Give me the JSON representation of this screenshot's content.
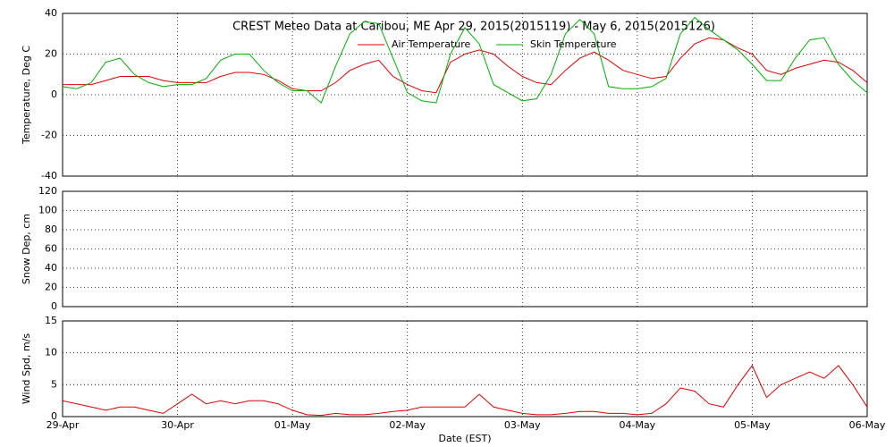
{
  "chart_data": [
    {
      "type": "line",
      "title": "CREST Meteo Data at Caribou, ME   Apr 29, 2015(2015119) - May  6, 2015(2015126)",
      "ylabel": "Temperature, Deg C",
      "ylim": [
        -40,
        40
      ],
      "yticks": [
        -40,
        -20,
        0,
        20,
        40
      ],
      "xlim": [
        0,
        7
      ],
      "xticks": [
        0,
        1,
        2,
        3,
        4,
        5,
        6,
        7
      ],
      "grid": true,
      "x": [
        0,
        0.125,
        0.25,
        0.375,
        0.5,
        0.625,
        0.75,
        0.875,
        1,
        1.125,
        1.25,
        1.375,
        1.5,
        1.625,
        1.75,
        1.875,
        2,
        2.125,
        2.25,
        2.375,
        2.5,
        2.625,
        2.75,
        2.875,
        3,
        3.125,
        3.25,
        3.375,
        3.5,
        3.625,
        3.75,
        3.875,
        4,
        4.125,
        4.25,
        4.375,
        4.5,
        4.625,
        4.75,
        4.875,
        5,
        5.125,
        5.25,
        5.375,
        5.5,
        5.625,
        5.75,
        5.875,
        6,
        6.125,
        6.25,
        6.375,
        6.5,
        6.625,
        6.75,
        6.875,
        7
      ],
      "series": [
        {
          "name": "Air Temperature",
          "color": "#e00000",
          "values": [
            5,
            5,
            5,
            7,
            9,
            9,
            9,
            7,
            6,
            6,
            6,
            9,
            11,
            11,
            10,
            7,
            3,
            2,
            2,
            6,
            12,
            15,
            17,
            9,
            5,
            2,
            1,
            16,
            20,
            22,
            20,
            14,
            9,
            6,
            5,
            12,
            18,
            21,
            17,
            12,
            10,
            8,
            9,
            18,
            25,
            28,
            27,
            23,
            20,
            12,
            10,
            13,
            15,
            17,
            16,
            12,
            6
          ]
        },
        {
          "name": "Skin Temperature",
          "color": "#00b000",
          "values": [
            4,
            3,
            6,
            16,
            18,
            10,
            6,
            4,
            5,
            5,
            8,
            17,
            20,
            20,
            12,
            6,
            2,
            2,
            -4,
            14,
            30,
            36,
            35,
            18,
            1,
            -3,
            -4,
            20,
            33,
            25,
            5,
            1,
            -3,
            -2,
            10,
            30,
            37,
            30,
            4,
            3,
            3,
            4,
            8,
            30,
            38,
            32,
            27,
            22,
            15,
            7,
            7,
            18,
            27,
            28,
            15,
            7,
            1
          ]
        }
      ]
    },
    {
      "type": "line",
      "ylabel": "Snow Dep, cm",
      "ylim": [
        0,
        120
      ],
      "yticks": [
        0,
        20,
        40,
        60,
        80,
        100,
        120
      ],
      "xlim": [
        0,
        7
      ],
      "xticks": [
        0,
        1,
        2,
        3,
        4,
        5,
        6,
        7
      ],
      "grid": true,
      "series": []
    },
    {
      "type": "line",
      "ylabel": "Wind Spd, m/s",
      "xlabel": "Date (EST)",
      "ylim": [
        0,
        15
      ],
      "yticks": [
        0,
        5,
        10,
        15
      ],
      "xlim": [
        0,
        7
      ],
      "xticks": [
        {
          "value": 0,
          "label": "29-Apr"
        },
        {
          "value": 1,
          "label": "30-Apr"
        },
        {
          "value": 2,
          "label": "01-May"
        },
        {
          "value": 3,
          "label": "02-May"
        },
        {
          "value": 4,
          "label": "03-May"
        },
        {
          "value": 5,
          "label": "04-May"
        },
        {
          "value": 6,
          "label": "05-May"
        },
        {
          "value": 7,
          "label": "06-May"
        }
      ],
      "grid": true,
      "x": [
        0,
        0.125,
        0.25,
        0.375,
        0.5,
        0.625,
        0.75,
        0.875,
        1,
        1.125,
        1.25,
        1.375,
        1.5,
        1.625,
        1.75,
        1.875,
        2,
        2.125,
        2.25,
        2.375,
        2.5,
        2.625,
        2.75,
        2.875,
        3,
        3.125,
        3.25,
        3.375,
        3.5,
        3.625,
        3.75,
        3.875,
        4,
        4.125,
        4.25,
        4.375,
        4.5,
        4.625,
        4.75,
        4.875,
        5,
        5.125,
        5.25,
        5.375,
        5.5,
        5.625,
        5.75,
        5.875,
        6,
        6.125,
        6.25,
        6.375,
        6.5,
        6.625,
        6.75,
        6.875,
        7
      ],
      "series": [
        {
          "name": "Wind Speed",
          "color": "#e00000",
          "show_legend": false,
          "values": [
            2.5,
            2,
            1.5,
            1,
            1.5,
            1.5,
            1,
            0.5,
            2,
            3.5,
            2,
            2.5,
            2,
            2.5,
            2.5,
            2,
            1,
            0.3,
            0.2,
            0.5,
            0.3,
            0.3,
            0.5,
            0.8,
            1,
            1.5,
            1.5,
            1.5,
            1.5,
            3.5,
            1.5,
            1,
            0.5,
            0.3,
            0.3,
            0.5,
            0.8,
            0.8,
            0.5,
            0.5,
            0.3,
            0.5,
            2,
            4.5,
            4,
            2,
            1.5,
            5,
            8,
            3,
            5,
            6,
            7,
            6,
            8,
            5,
            1.5
          ]
        }
      ]
    }
  ]
}
